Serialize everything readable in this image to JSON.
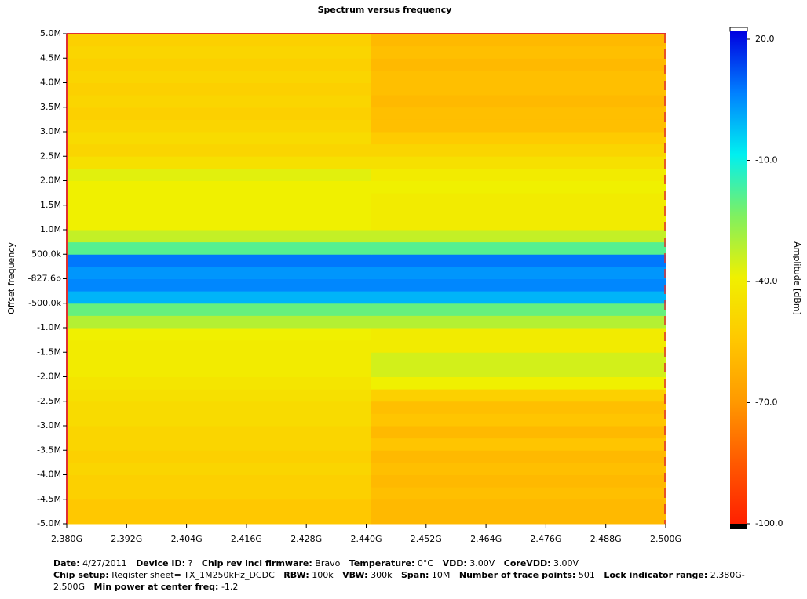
{
  "chart_data": {
    "type": "heatmap",
    "title": "Spectrum versus frequency",
    "ylabel": "Offset frequency",
    "zlabel": "Amplitude [dBm]",
    "xlim": [
      2380000000,
      2500000000
    ],
    "xticks": [
      {
        "value": 2380000000,
        "label": "2.380G"
      },
      {
        "value": 2392000000,
        "label": "2.392G"
      },
      {
        "value": 2404000000,
        "label": "2.404G"
      },
      {
        "value": 2416000000,
        "label": "2.416G"
      },
      {
        "value": 2428000000,
        "label": "2.428G"
      },
      {
        "value": 2440000000,
        "label": "2.440G"
      },
      {
        "value": 2452000000,
        "label": "2.452G"
      },
      {
        "value": 2464000000,
        "label": "2.464G"
      },
      {
        "value": 2476000000,
        "label": "2.476G"
      },
      {
        "value": 2488000000,
        "label": "2.488G"
      },
      {
        "value": 2500000000,
        "label": "2.500G"
      }
    ],
    "ylim": [
      -5000000,
      5000000
    ],
    "yticks": [
      {
        "value": 5000000,
        "label": "5.0M"
      },
      {
        "value": 4500000,
        "label": "4.5M"
      },
      {
        "value": 4000000,
        "label": "4.0M"
      },
      {
        "value": 3500000,
        "label": "3.5M"
      },
      {
        "value": 3000000,
        "label": "3.0M"
      },
      {
        "value": 2500000,
        "label": "2.5M"
      },
      {
        "value": 2000000,
        "label": "2.0M"
      },
      {
        "value": 1500000,
        "label": "1.5M"
      },
      {
        "value": 1000000,
        "label": "1.0M"
      },
      {
        "value": 500000,
        "label": "500.0k"
      },
      {
        "value": -8.276e-10,
        "label": "-827.6p"
      },
      {
        "value": -500000,
        "label": "-500.0k"
      },
      {
        "value": -1000000,
        "label": "-1.0M"
      },
      {
        "value": -1500000,
        "label": "-1.5M"
      },
      {
        "value": -2000000,
        "label": "-2.0M"
      },
      {
        "value": -2500000,
        "label": "-2.5M"
      },
      {
        "value": -3000000,
        "label": "-3.0M"
      },
      {
        "value": -3500000,
        "label": "-3.5M"
      },
      {
        "value": -4000000,
        "label": "-4.0M"
      },
      {
        "value": -4500000,
        "label": "-4.5M"
      },
      {
        "value": -5000000,
        "label": "-5.0M"
      }
    ],
    "zlim": [
      -100,
      20
    ],
    "zticks": [
      {
        "value": 20,
        "label": "20.0"
      },
      {
        "value": -10,
        "label": "-10.0"
      },
      {
        "value": -40,
        "label": "-40.0"
      },
      {
        "value": -70,
        "label": "-70.0"
      },
      {
        "value": -100,
        "label": "-100.0"
      }
    ],
    "colormap": [
      "#ff2000",
      "#ff5a00",
      "#ff9a00",
      "#ffc800",
      "#f0f000",
      "#80f060",
      "#00f0f0",
      "#0080ff",
      "#0000e0"
    ],
    "xbins": [
      2380000000,
      2441000000,
      2500000000
    ],
    "ybins": [
      -5000000,
      -4750000,
      -4500000,
      -4250000,
      -4000000,
      -3750000,
      -3500000,
      -3250000,
      -3000000,
      -2750000,
      -2500000,
      -2250000,
      -2000000,
      -1750000,
      -1500000,
      -1250000,
      -1000000,
      -750000,
      -500000,
      -250000,
      0,
      250000,
      500000,
      750000,
      1000000,
      1250000,
      1500000,
      1750000,
      2000000,
      2250000,
      2500000,
      2750000,
      3000000,
      3250000,
      3500000,
      3750000,
      4000000,
      4250000,
      4500000,
      4750000,
      5000000
    ],
    "z": [
      [
        -55,
        -60
      ],
      [
        -55,
        -60
      ],
      [
        -52,
        -58
      ],
      [
        -52,
        -60
      ],
      [
        -50,
        -58
      ],
      [
        -52,
        -60
      ],
      [
        -50,
        -56
      ],
      [
        -50,
        -60
      ],
      [
        -48,
        -56
      ],
      [
        -48,
        -58
      ],
      [
        -46,
        -52
      ],
      [
        -44,
        -40
      ],
      [
        -42,
        -36
      ],
      [
        -42,
        -36
      ],
      [
        -42,
        -42
      ],
      [
        -40,
        -42
      ],
      [
        -32,
        -32
      ],
      [
        -22,
        -22
      ],
      [
        -2,
        -2
      ],
      [
        4,
        4
      ],
      [
        2,
        2
      ],
      [
        6,
        6
      ],
      [
        -20,
        -20
      ],
      [
        -34,
        -34
      ],
      [
        -40,
        -42
      ],
      [
        -40,
        -42
      ],
      [
        -40,
        -42
      ],
      [
        -40,
        -40
      ],
      [
        -38,
        -42
      ],
      [
        -46,
        -46
      ],
      [
        -50,
        -50
      ],
      [
        -48,
        -54
      ],
      [
        -50,
        -58
      ],
      [
        -52,
        -58
      ],
      [
        -50,
        -60
      ],
      [
        -52,
        -58
      ],
      [
        -50,
        -58
      ],
      [
        -52,
        -60
      ],
      [
        -50,
        -58
      ],
      [
        -52,
        -60
      ]
    ]
  },
  "footer": [
    [
      {
        "label": "Date:",
        "value": "4/27/2011"
      },
      {
        "label": "Device ID:",
        "value": "?"
      },
      {
        "label": "Chip rev incl firmware:",
        "value": "Bravo"
      },
      {
        "label": "Temperature:",
        "value": "0°C"
      },
      {
        "label": "VDD:",
        "value": "3.00V"
      },
      {
        "label": "CoreVDD:",
        "value": "3.00V"
      }
    ],
    [
      {
        "label": "Chip setup:",
        "value": "Register sheet= TX_1M250kHz_DCDC"
      },
      {
        "label": "RBW:",
        "value": "100k"
      },
      {
        "label": "VBW:",
        "value": "300k"
      },
      {
        "label": "Span:",
        "value": "10M"
      },
      {
        "label": "Number of trace points:",
        "value": "501"
      },
      {
        "label": "Lock indicator range:",
        "value": "2.380G-2.500G"
      },
      {
        "label": "Min power at center freq:",
        "value": "-1.2"
      }
    ]
  ]
}
